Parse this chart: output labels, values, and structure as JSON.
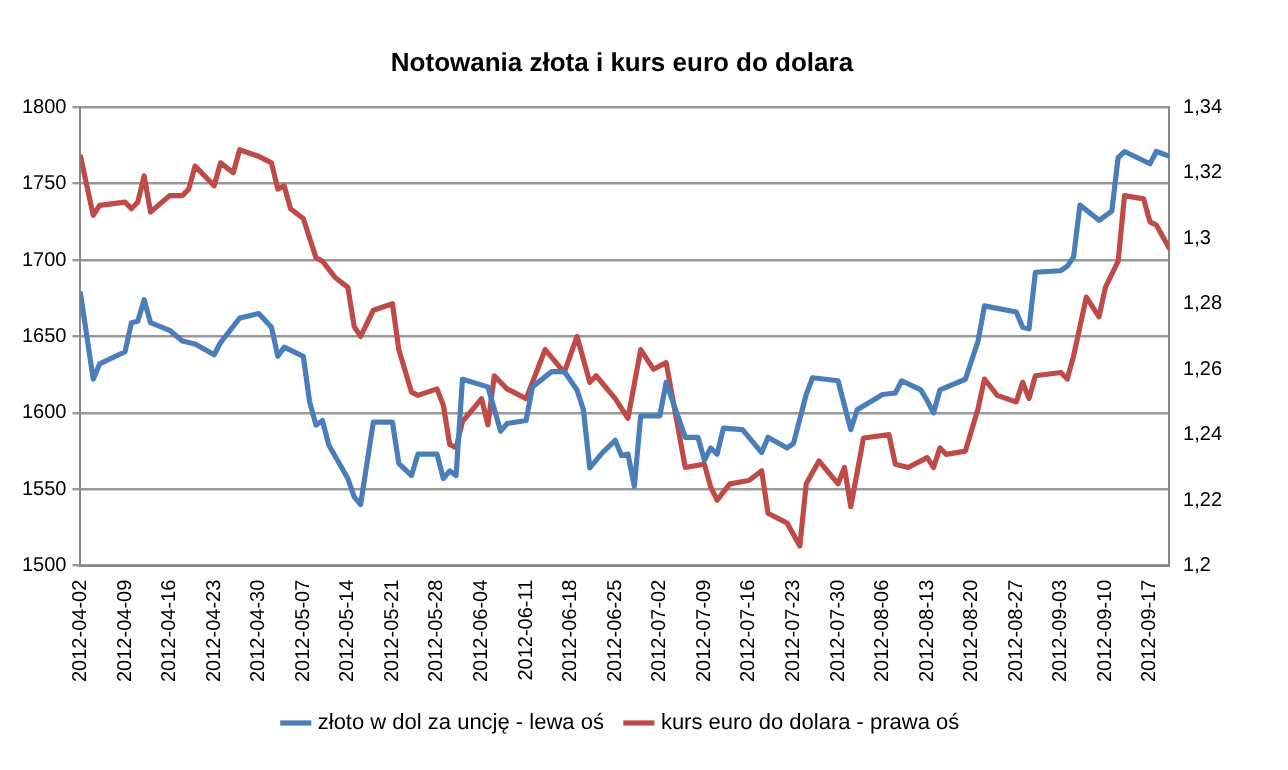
{
  "chart_data": {
    "type": "line",
    "title": "Notowania złota i kurs euro do dolara",
    "xlim": [
      "2012-04-02",
      "2012-09-20"
    ],
    "xticks": [
      "2012-04-02",
      "2012-04-09",
      "2012-04-16",
      "2012-04-23",
      "2012-04-30",
      "2012-05-07",
      "2012-05-14",
      "2012-05-21",
      "2012-05-28",
      "2012-06-04",
      "2012-06-11",
      "2012-06-18",
      "2012-06-25",
      "2012-07-02",
      "2012-07-09",
      "2012-07-16",
      "2012-07-23",
      "2012-07-30",
      "2012-08-06",
      "2012-08-13",
      "2012-08-20",
      "2012-08-27",
      "2012-09-03",
      "2012-09-10",
      "2012-09-17"
    ],
    "ylim": [
      1500,
      1800
    ],
    "yticks": [
      1500,
      1550,
      1600,
      1650,
      1700,
      1750,
      1800
    ],
    "y2lim": [
      1.2,
      1.34
    ],
    "y2ticks": [
      {
        "value": 1.2,
        "label": "1,2"
      },
      {
        "value": 1.22,
        "label": "1,22"
      },
      {
        "value": 1.24,
        "label": "1,24"
      },
      {
        "value": 1.26,
        "label": "1,26"
      },
      {
        "value": 1.28,
        "label": "1,28"
      },
      {
        "value": 1.3,
        "label": "1,3"
      },
      {
        "value": 1.32,
        "label": "1,32"
      },
      {
        "value": 1.34,
        "label": "1,34"
      }
    ],
    "grid": "y",
    "legend": "bottom",
    "marker": "none",
    "line_style": "solid",
    "series": [
      {
        "name": "złoto w dol za uncję - lewa oś",
        "color": "#4a7ebb",
        "x": [
          "2012-04-02",
          "2012-04-04",
          "2012-04-05",
          "2012-04-09",
          "2012-04-10",
          "2012-04-11",
          "2012-04-12",
          "2012-04-13",
          "2012-04-16",
          "2012-04-18",
          "2012-04-20",
          "2012-04-23",
          "2012-04-24",
          "2012-04-27",
          "2012-04-30",
          "2012-05-02",
          "2012-05-03",
          "2012-05-04",
          "2012-05-07",
          "2012-05-08",
          "2012-05-09",
          "2012-05-10",
          "2012-05-11",
          "2012-05-14",
          "2012-05-15",
          "2012-05-16",
          "2012-05-17",
          "2012-05-18",
          "2012-05-21",
          "2012-05-22",
          "2012-05-24",
          "2012-05-25",
          "2012-05-28",
          "2012-05-29",
          "2012-05-30",
          "2012-05-31",
          "2012-06-01",
          "2012-06-05",
          "2012-06-07",
          "2012-06-08",
          "2012-06-11",
          "2012-06-12",
          "2012-06-15",
          "2012-06-17",
          "2012-06-19",
          "2012-06-20",
          "2012-06-21",
          "2012-06-23",
          "2012-06-25",
          "2012-06-26",
          "2012-06-27",
          "2012-06-28",
          "2012-06-29",
          "2012-07-02",
          "2012-07-03",
          "2012-07-06",
          "2012-07-08",
          "2012-07-09",
          "2012-07-10",
          "2012-07-11",
          "2012-07-12",
          "2012-07-15",
          "2012-07-18",
          "2012-07-19",
          "2012-07-22",
          "2012-07-23",
          "2012-07-25",
          "2012-07-26",
          "2012-07-30",
          "2012-08-01",
          "2012-08-02",
          "2012-08-06",
          "2012-08-08",
          "2012-08-09",
          "2012-08-12",
          "2012-08-13",
          "2012-08-14",
          "2012-08-15",
          "2012-08-19",
          "2012-08-21",
          "2012-08-22",
          "2012-08-27",
          "2012-08-28",
          "2012-08-29",
          "2012-08-30",
          "2012-09-03",
          "2012-09-04",
          "2012-09-05",
          "2012-09-06",
          "2012-09-09",
          "2012-09-11",
          "2012-09-12",
          "2012-09-13",
          "2012-09-17",
          "2012-09-18",
          "2012-09-20"
        ],
        "values": [
          1678,
          1622,
          1632,
          1640,
          1659,
          1660,
          1674,
          1659,
          1654,
          1647,
          1645,
          1638,
          1646,
          1662,
          1665,
          1656,
          1637,
          1643,
          1637,
          1607,
          1592,
          1595,
          1579,
          1557,
          1545,
          1540,
          1567,
          1594,
          1594,
          1567,
          1559,
          1573,
          1573,
          1557,
          1562,
          1559,
          1622,
          1617,
          1588,
          1593,
          1595,
          1617,
          1627,
          1627,
          1615,
          1602,
          1564,
          1574,
          1582,
          1572,
          1573,
          1552,
          1598,
          1598,
          1620,
          1584,
          1584,
          1569,
          1577,
          1573,
          1590,
          1589,
          1574,
          1584,
          1577,
          1580,
          1612,
          1623,
          1621,
          1589,
          1602,
          1612,
          1613,
          1621,
          1615,
          1608,
          1600,
          1615,
          1622,
          1647,
          1670,
          1666,
          1656,
          1655,
          1692,
          1693,
          1696,
          1702,
          1736,
          1726,
          1732,
          1767,
          1771,
          1763,
          1771,
          1768
        ]
      },
      {
        "name": "kurs euro do dolara - prawa oś",
        "color": "#be4b48",
        "axis": "y2",
        "x": [
          "2012-04-02",
          "2012-04-04",
          "2012-04-05",
          "2012-04-09",
          "2012-04-10",
          "2012-04-11",
          "2012-04-12",
          "2012-04-13",
          "2012-04-16",
          "2012-04-18",
          "2012-04-19",
          "2012-04-20",
          "2012-04-23",
          "2012-04-24",
          "2012-04-26",
          "2012-04-27",
          "2012-04-30",
          "2012-05-02",
          "2012-05-03",
          "2012-05-04",
          "2012-05-05",
          "2012-05-07",
          "2012-05-09",
          "2012-05-10",
          "2012-05-12",
          "2012-05-14",
          "2012-05-15",
          "2012-05-16",
          "2012-05-18",
          "2012-05-21",
          "2012-05-22",
          "2012-05-24",
          "2012-05-25",
          "2012-05-28",
          "2012-05-29",
          "2012-05-30",
          "2012-05-31",
          "2012-06-01",
          "2012-06-04",
          "2012-06-05",
          "2012-06-06",
          "2012-06-08",
          "2012-06-11",
          "2012-06-14",
          "2012-06-17",
          "2012-06-19",
          "2012-06-21",
          "2012-06-22",
          "2012-06-25",
          "2012-06-27",
          "2012-06-29",
          "2012-07-01",
          "2012-07-03",
          "2012-07-06",
          "2012-07-09",
          "2012-07-10",
          "2012-07-11",
          "2012-07-13",
          "2012-07-16",
          "2012-07-18",
          "2012-07-19",
          "2012-07-22",
          "2012-07-24",
          "2012-07-25",
          "2012-07-27",
          "2012-07-30",
          "2012-07-31",
          "2012-08-01",
          "2012-08-03",
          "2012-08-07",
          "2012-08-08",
          "2012-08-10",
          "2012-08-13",
          "2012-08-14",
          "2012-08-15",
          "2012-08-16",
          "2012-08-19",
          "2012-08-21",
          "2012-08-22",
          "2012-08-24",
          "2012-08-27",
          "2012-08-28",
          "2012-08-29",
          "2012-08-30",
          "2012-09-03",
          "2012-09-04",
          "2012-09-05",
          "2012-09-07",
          "2012-09-09",
          "2012-09-10",
          "2012-09-12",
          "2012-09-13",
          "2012-09-16",
          "2012-09-17",
          "2012-09-18",
          "2012-09-20"
        ],
        "values": [
          1.325,
          1.307,
          1.31,
          1.311,
          1.309,
          1.311,
          1.319,
          1.308,
          1.313,
          1.313,
          1.315,
          1.322,
          1.316,
          1.323,
          1.32,
          1.327,
          1.325,
          1.323,
          1.315,
          1.316,
          1.309,
          1.306,
          1.294,
          1.293,
          1.288,
          1.285,
          1.273,
          1.27,
          1.278,
          1.28,
          1.266,
          1.253,
          1.252,
          1.254,
          1.249,
          1.237,
          1.236,
          1.244,
          1.251,
          1.243,
          1.258,
          1.254,
          1.251,
          1.266,
          1.259,
          1.27,
          1.256,
          1.258,
          1.251,
          1.245,
          1.266,
          1.26,
          1.262,
          1.23,
          1.231,
          1.224,
          1.22,
          1.225,
          1.226,
          1.229,
          1.216,
          1.213,
          1.206,
          1.225,
          1.232,
          1.225,
          1.23,
          1.218,
          1.239,
          1.24,
          1.231,
          1.23,
          1.233,
          1.23,
          1.236,
          1.234,
          1.235,
          1.248,
          1.257,
          1.252,
          1.25,
          1.256,
          1.251,
          1.258,
          1.259,
          1.257,
          1.264,
          1.282,
          1.276,
          1.285,
          1.293,
          1.313,
          1.312,
          1.305,
          1.304,
          1.297
        ]
      }
    ]
  }
}
